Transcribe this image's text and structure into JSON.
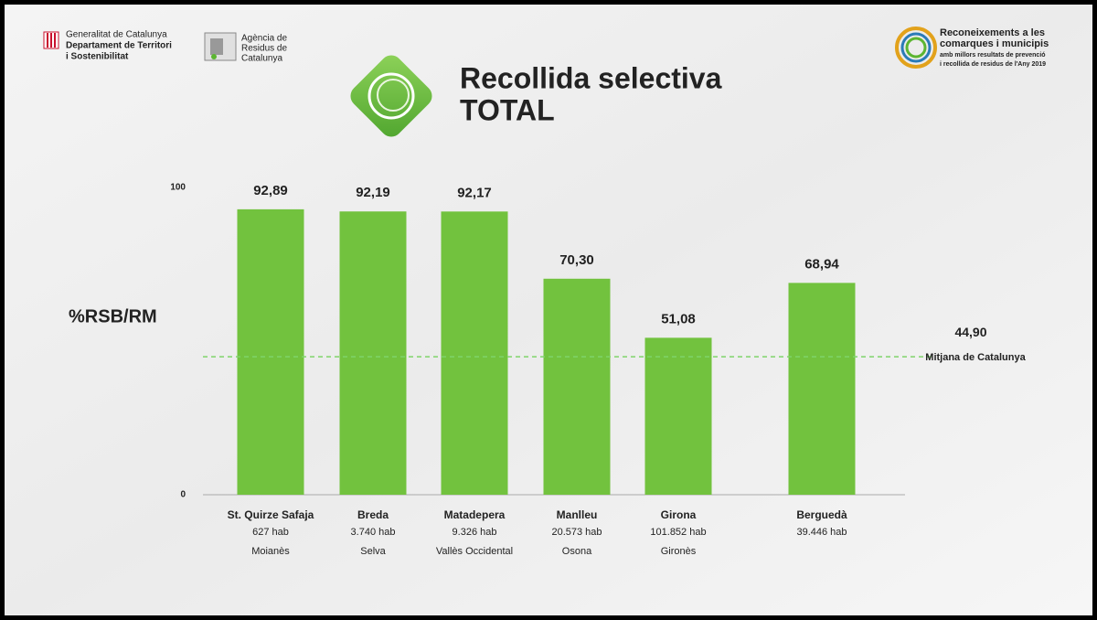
{
  "header": {
    "left_logo": [
      "Generalitat de Catalunya",
      "Departament de Territori",
      "i Sostenibilitat"
    ],
    "middle_logo": [
      "Agència de",
      "Residus de",
      "Catalunya"
    ],
    "right_logo": [
      "Reconeixements a les",
      "comarques i municipis",
      "amb millors resultats de prevenció",
      "i recollida de residus de l'Any 2019"
    ]
  },
  "chart_data": {
    "type": "bar",
    "title": "Recollida selectiva",
    "subtitle": "TOTAL",
    "y_label": "%RSB/RM",
    "categories": [
      "St. Quirze Safaja",
      "Breda",
      "Matadepera",
      "Manlleu",
      "Girona",
      "Berguedà"
    ],
    "population": [
      "627 hab",
      "3.740 hab",
      "9.326 hab",
      "20.573 hab",
      "101.852 hab",
      "39.446 hab"
    ],
    "region": [
      "Moianès",
      "Selva",
      "Vallès Occidental",
      "Osona",
      "Gironès",
      null
    ],
    "values": [
      92.89,
      92.19,
      92.17,
      70.3,
      51.08,
      68.94
    ],
    "value_labels": [
      "92,89",
      "92,19",
      "92,17",
      "70,30",
      "51,08",
      "68,94"
    ],
    "color": "#72c23e",
    "ylim": [
      0,
      100
    ],
    "yticks": [
      0,
      100
    ],
    "average": {
      "value": 44.9,
      "label": "44,90",
      "name": "Mitjana de Catalunya",
      "color": "#7fd46a"
    }
  }
}
